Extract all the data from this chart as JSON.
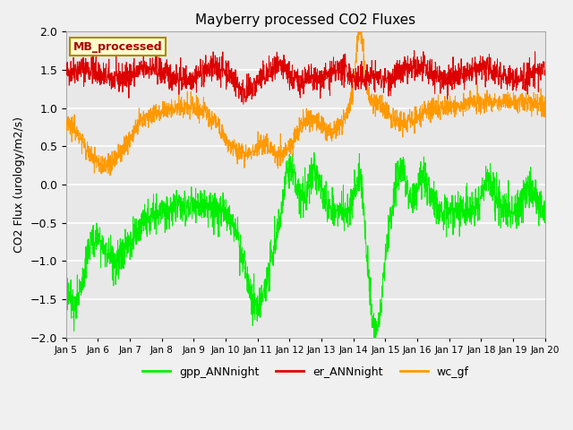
{
  "title": "Mayberry processed CO2 Fluxes",
  "ylabel": "CO2 Flux (urology/m2/s)",
  "ylim": [
    -2.0,
    2.0
  ],
  "yticks": [
    -2.0,
    -1.5,
    -1.0,
    -0.5,
    0.0,
    0.5,
    1.0,
    1.5,
    2.0
  ],
  "xlabels": [
    "Jan 5",
    "Jan 6",
    "Jan 7",
    "Jan 8",
    "Jan 9",
    "Jan 10",
    "Jan 11",
    "Jan 12",
    "Jan 13",
    "Jan 14",
    "Jan 15",
    "Jan 16",
    "Jan 17",
    "Jan 18",
    "Jan 19",
    "Jan 20"
  ],
  "n_points": 2000,
  "er_color": "#dd0000",
  "wc_color": "#ff9900",
  "gpp_color": "#00ee00",
  "legend_box_color": "#ffffcc",
  "legend_box_edge": "#aa8800",
  "legend_text": "MB_processed",
  "legend_text_color": "#aa0000",
  "background_color": "#e8e8e8",
  "grid_color": "#ffffff",
  "fig_bg": "#f0f0f0",
  "linewidth": 0.7,
  "seed": 42
}
